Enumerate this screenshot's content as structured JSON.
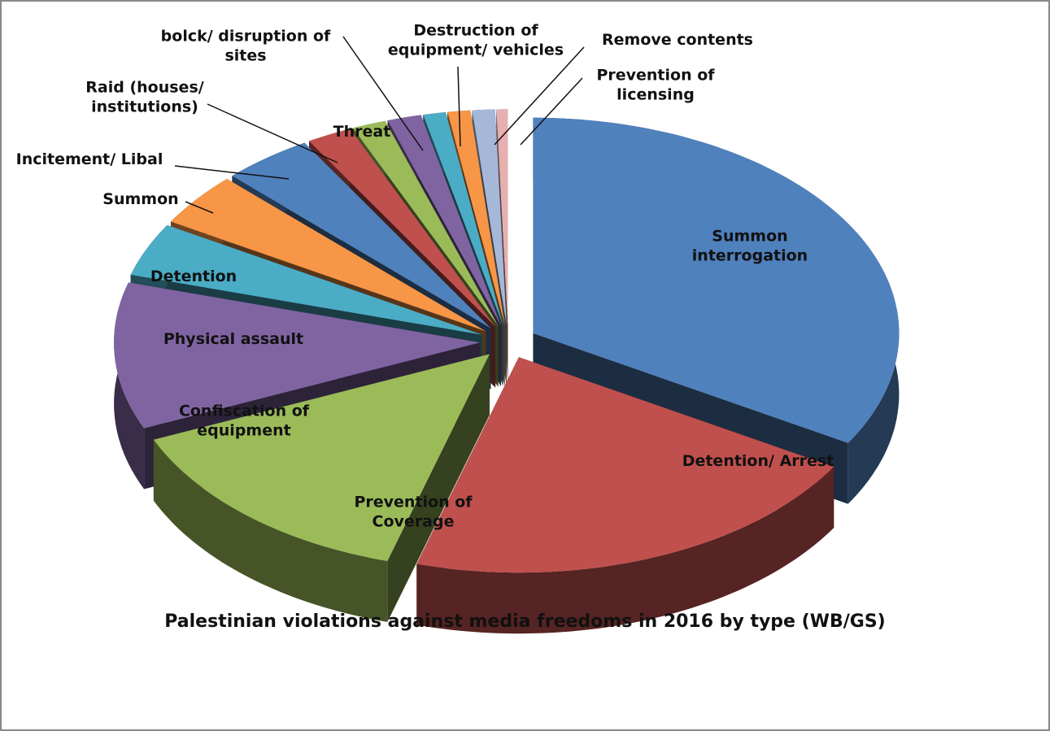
{
  "chart_data": {
    "type": "pie3d",
    "title": "Palestinian violations against media freedoms in 2016 by type (WB/GS)",
    "categories": [
      "Summon interrogation",
      "Detention/ Arrest",
      "Prevention of Coverage",
      "Confiscation of equipment",
      "Physical assault",
      "Detention",
      "Summon",
      "Incitement/ Libal",
      "Raid (houses/ institutions)",
      "Threat",
      "bolck/ disruption of sites",
      "Destruction of equipment/ vehicles",
      "Remove contents",
      "Prevention of licensing"
    ],
    "values": [
      33.5,
      21,
      14,
      11,
      4,
      4,
      4,
      2,
      1.5,
      1.5,
      1,
      1,
      1,
      0.5
    ],
    "colors": [
      "#4f81bd",
      "#c0504d",
      "#9bbb59",
      "#8064a2",
      "#4bacc6",
      "#f79646",
      "#4f81bd",
      "#c0504d",
      "#9bbb59",
      "#8064a2",
      "#4bacc6",
      "#f79646",
      "#a5b8d8",
      "#e6b0b0"
    ]
  }
}
